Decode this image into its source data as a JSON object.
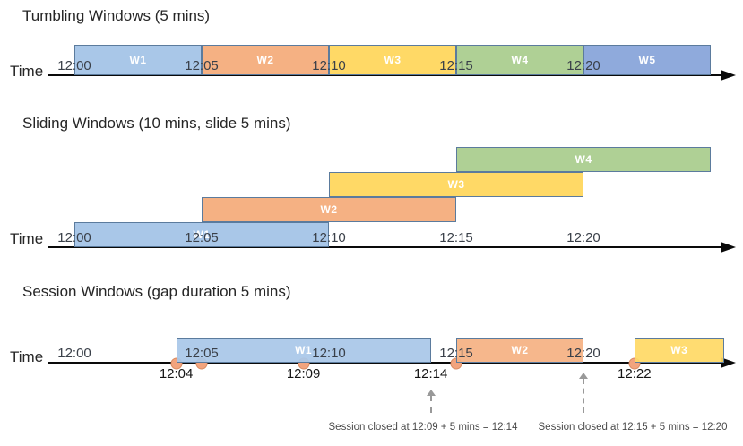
{
  "palette": {
    "blue": "#A9C7E8",
    "orange": "#F5B183",
    "yellow": "#FFD966",
    "green": "#AFD095",
    "periwinkle": "#8FAADC",
    "box_border": "#5B7B9D",
    "event_dot": "#F2A47E",
    "event_dot_border": "#D98C62",
    "annotation_gray": "#999999",
    "axis_black": "#0A0A0A"
  },
  "sections": [
    {
      "id": "tumbling",
      "title": "Tumbling Windows (5 mins)",
      "axis_label": "Time",
      "ticks": [
        "12:00",
        "12:05",
        "12:10",
        "12:15",
        "12:20"
      ],
      "windows": [
        {
          "label": "W1",
          "start": "12:00",
          "end": "12:05",
          "color": "blue"
        },
        {
          "label": "W2",
          "start": "12:05",
          "end": "12:10",
          "color": "orange"
        },
        {
          "label": "W3",
          "start": "12:10",
          "end": "12:15",
          "color": "yellow"
        },
        {
          "label": "W4",
          "start": "12:15",
          "end": "12:20",
          "color": "green"
        },
        {
          "label": "W5",
          "start": "12:20",
          "end": "12:25",
          "color": "periwinkle"
        }
      ]
    },
    {
      "id": "sliding",
      "title": "Sliding Windows (10 mins, slide 5 mins)",
      "axis_label": "Time",
      "ticks": [
        "12:00",
        "12:05",
        "12:10",
        "12:15",
        "12:20"
      ],
      "windows": [
        {
          "label": "W1",
          "start": "12:00",
          "end": "12:10",
          "color": "blue"
        },
        {
          "label": "W2",
          "start": "12:05",
          "end": "12:15",
          "color": "orange"
        },
        {
          "label": "W3",
          "start": "12:10",
          "end": "12:20",
          "color": "yellow"
        },
        {
          "label": "W4",
          "start": "12:15",
          "end": "12:25",
          "color": "green"
        }
      ]
    },
    {
      "id": "session",
      "title": "Session Windows (gap duration 5 mins)",
      "axis_label": "Time",
      "ticks": [
        "12:00",
        "12:05",
        "12:10",
        "12:15",
        "12:20"
      ],
      "windows": [
        {
          "label": "W1",
          "start": "12:04",
          "end": "12:14",
          "color": "blue"
        },
        {
          "label": "W2",
          "start": "12:15",
          "end": "12:20",
          "color": "orange"
        },
        {
          "label": "W3",
          "start": "12:22",
          "end": "",
          "color": "yellow"
        }
      ],
      "events": [
        "12:04",
        "12:05",
        "12:09",
        "12:15",
        "12:22"
      ],
      "event_labels": [
        "12:04",
        "12:09",
        "12:14",
        "12:22"
      ],
      "annotations": [
        {
          "text": "Session closed at 12:09 + 5 mins = 12:14",
          "arrow_at": "12:14"
        },
        {
          "text": "Session closed at 12:15 + 5 mins = 12:20",
          "arrow_at": "12:20"
        }
      ]
    }
  ]
}
